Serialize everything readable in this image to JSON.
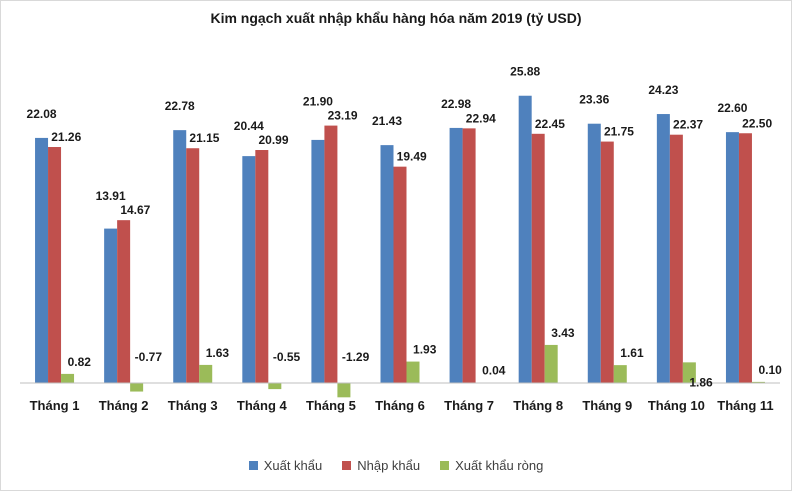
{
  "chart_data": {
    "type": "bar",
    "title": "Kim ngạch xuất nhập khẩu hàng hóa năm 2019 (tỷ USD)",
    "xlabel": "",
    "ylabel": "",
    "ylim": [
      -2,
      27
    ],
    "grid": false,
    "legend_position": "bottom",
    "categories": [
      "Tháng 1",
      "Tháng 2",
      "Tháng 3",
      "Tháng 4",
      "Tháng 5",
      "Tháng 6",
      "Tháng 7",
      "Tháng 8",
      "Tháng 9",
      "Tháng 10",
      "Tháng 11"
    ],
    "series": [
      {
        "name": "Xuất khẩu",
        "color": "#4f81bd",
        "values": [
          22.08,
          13.91,
          22.78,
          20.44,
          21.9,
          21.43,
          22.98,
          25.88,
          23.36,
          24.23,
          22.6
        ],
        "labels": [
          "22.08",
          "13.91",
          "22.78",
          "20.44",
          "21.90",
          "21.43",
          "22.98",
          "25.88",
          "23.36",
          "24.23",
          "22.60"
        ]
      },
      {
        "name": "Nhập khẩu",
        "color": "#c0504d",
        "values": [
          21.26,
          14.67,
          21.15,
          20.99,
          23.19,
          19.49,
          22.94,
          22.45,
          21.75,
          22.37,
          22.5
        ],
        "labels": [
          "21.26",
          "14.67",
          "21.15",
          "20.99",
          "23.19",
          "19.49",
          "22.94",
          "22.45",
          "21.75",
          "22.37",
          "22.50"
        ]
      },
      {
        "name": "Xuất khẩu ròng",
        "color": "#9bbb59",
        "values": [
          0.82,
          -0.77,
          1.63,
          -0.55,
          -1.29,
          1.93,
          0.04,
          3.43,
          1.61,
          1.86,
          0.1
        ],
        "labels": [
          "0.82",
          "-0.77",
          "1.63",
          "-0.55",
          "-1.29",
          "1.93",
          "0.04",
          "3.43",
          "1.61",
          "1.86",
          "0.10"
        ]
      }
    ]
  }
}
